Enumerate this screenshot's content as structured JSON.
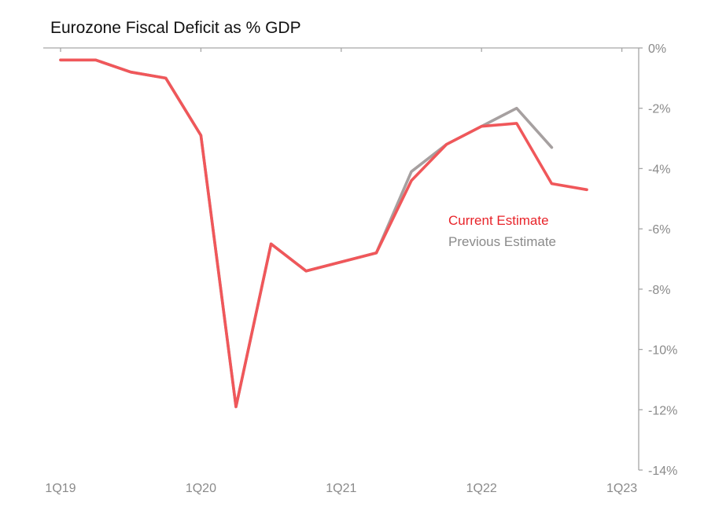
{
  "chart_data": {
    "type": "line",
    "title": "Eurozone Fiscal Deficit as % GDP",
    "xlabel": "",
    "ylabel": "",
    "ylim": [
      -14,
      0
    ],
    "yticks": [
      0,
      -2,
      -4,
      -6,
      -8,
      -10,
      -12,
      -14
    ],
    "ytick_labels": [
      "0%",
      "-2%",
      "-4%",
      "-6%",
      "-8%",
      "-10%",
      "-12%",
      "-14%"
    ],
    "x": [
      "1Q19",
      "2Q19",
      "3Q19",
      "4Q19",
      "1Q20",
      "2Q20",
      "3Q20",
      "4Q20",
      "1Q21",
      "2Q21",
      "3Q21",
      "4Q21",
      "1Q22",
      "2Q22",
      "3Q22",
      "4Q22"
    ],
    "xtick_labels": [
      "1Q19",
      "1Q20",
      "1Q21",
      "1Q22",
      "1Q23"
    ],
    "series": [
      {
        "name": "Previous Estimate",
        "color": "#a6a0a0",
        "values": [
          -0.4,
          -0.4,
          -0.8,
          -1.0,
          -2.9,
          -11.9,
          -6.5,
          -7.4,
          -7.1,
          -6.8,
          -4.1,
          -3.2,
          -2.6,
          -2.0,
          -3.3,
          null
        ]
      },
      {
        "name": "Current Estimate",
        "color": "#f0575a",
        "values": [
          -0.4,
          -0.4,
          -0.8,
          -1.0,
          -2.9,
          -11.9,
          -6.5,
          -7.4,
          -7.1,
          -6.8,
          -4.4,
          -3.2,
          -2.6,
          -2.5,
          -4.5,
          -4.7
        ]
      }
    ],
    "legend": {
      "current_label": "Current Estimate",
      "previous_label": "Previous Estimate",
      "current_color": "#e8242a",
      "previous_color": "#8a8a8a",
      "placement": "center-right"
    },
    "grid": false,
    "axis_color": "#a6a6a6"
  }
}
